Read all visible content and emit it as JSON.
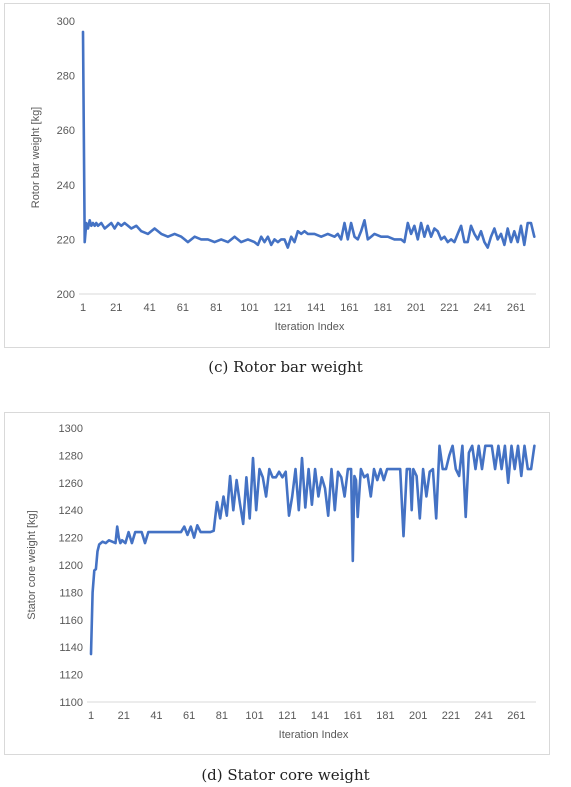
{
  "captions": {
    "c": "(c) Rotor bar weight",
    "d": "(d) Stator core weight"
  },
  "chart_data": [
    {
      "id": "rotor",
      "type": "line",
      "title": "",
      "xlabel": "Iteration Index",
      "ylabel": "Rotor bar weight [kg]",
      "ylim": [
        200,
        300
      ],
      "yticks": [
        200,
        220,
        240,
        260,
        280,
        300
      ],
      "xlim": [
        1,
        273
      ],
      "xticks": [
        1,
        21,
        41,
        61,
        81,
        101,
        121,
        141,
        161,
        181,
        201,
        221,
        241,
        261
      ],
      "grid": false,
      "line_color": "#4472c4",
      "series": [
        {
          "x": [
            1,
            2,
            3,
            4,
            5,
            6,
            7,
            8,
            9,
            10,
            12,
            14,
            16,
            18,
            20,
            22,
            24,
            26,
            28,
            30,
            33,
            36,
            40,
            44,
            48,
            52,
            56,
            60,
            62,
            64,
            68,
            72,
            76,
            80,
            84,
            88,
            92,
            96,
            100,
            104,
            106,
            108,
            110,
            112,
            114,
            116,
            118,
            120,
            122,
            124,
            126,
            128,
            130,
            132,
            134,
            136,
            140,
            144,
            148,
            152,
            154,
            156,
            158,
            160,
            162,
            164,
            166,
            168,
            170,
            172,
            174,
            176,
            180,
            184,
            188,
            192,
            194,
            196,
            198,
            200,
            202,
            204,
            206,
            208,
            210,
            212,
            214,
            216,
            218,
            220,
            222,
            224,
            226,
            228,
            230,
            232,
            234,
            236,
            238,
            240,
            242,
            244,
            246,
            248,
            250,
            252,
            254,
            256,
            258,
            260,
            262,
            264,
            266,
            268,
            270,
            272
          ],
          "values": [
            296,
            219,
            226,
            224,
            227,
            225,
            226,
            225,
            226,
            225,
            226,
            224,
            225,
            226,
            224,
            226,
            225,
            226,
            225,
            224,
            225,
            223,
            222,
            224,
            222,
            221,
            222,
            221,
            220,
            219,
            221,
            220,
            220,
            219,
            220,
            219,
            221,
            219,
            220,
            219,
            218,
            221,
            219,
            221,
            218,
            220,
            219,
            220,
            220,
            217,
            221,
            219,
            223,
            222,
            223,
            222,
            222,
            221,
            222,
            221,
            222,
            220,
            226,
            220,
            226,
            221,
            220,
            223,
            227,
            220,
            221,
            222,
            221,
            221,
            220,
            220,
            219,
            226,
            222,
            225,
            220,
            226,
            221,
            225,
            221,
            224,
            223,
            220,
            221,
            219,
            220,
            219,
            222,
            225,
            219,
            219,
            225,
            222,
            220,
            223,
            219,
            217,
            221,
            224,
            220,
            222,
            218,
            224,
            219,
            223,
            219,
            225,
            218,
            226,
            226,
            221
          ]
        }
      ]
    },
    {
      "id": "stator",
      "type": "line",
      "title": "",
      "xlabel": "Iteration Index",
      "ylabel": "Stator core weight [kg]",
      "ylim": [
        1100,
        1300
      ],
      "yticks": [
        1100,
        1120,
        1140,
        1160,
        1180,
        1200,
        1220,
        1240,
        1260,
        1280,
        1300
      ],
      "xlim": [
        1,
        273
      ],
      "xticks": [
        1,
        21,
        41,
        61,
        81,
        101,
        121,
        141,
        161,
        181,
        201,
        221,
        241,
        261
      ],
      "grid": false,
      "line_color": "#4472c4",
      "series": [
        {
          "x": [
            1,
            2,
            3,
            4,
            5,
            6,
            7,
            8,
            10,
            12,
            14,
            16,
            17,
            18,
            19,
            20,
            22,
            24,
            26,
            28,
            30,
            32,
            34,
            36,
            38,
            40,
            44,
            48,
            52,
            56,
            58,
            60,
            62,
            64,
            66,
            68,
            70,
            72,
            74,
            76,
            78,
            80,
            82,
            84,
            86,
            88,
            90,
            92,
            94,
            96,
            98,
            100,
            102,
            104,
            106,
            108,
            110,
            112,
            114,
            116,
            118,
            120,
            122,
            124,
            126,
            128,
            130,
            132,
            134,
            136,
            138,
            140,
            142,
            144,
            146,
            148,
            150,
            152,
            154,
            156,
            158,
            160,
            161,
            162,
            163,
            164,
            166,
            168,
            170,
            172,
            174,
            176,
            178,
            180,
            182,
            184,
            186,
            188,
            190,
            192,
            194,
            196,
            197,
            198,
            200,
            202,
            204,
            206,
            208,
            210,
            212,
            214,
            216,
            218,
            220,
            222,
            224,
            226,
            228,
            230,
            232,
            234,
            236,
            238,
            240,
            242,
            244,
            246,
            248,
            250,
            252,
            254,
            256,
            258,
            260,
            262,
            264,
            266,
            268,
            270,
            272
          ],
          "values": [
            1135,
            1180,
            1196,
            1197,
            1210,
            1215,
            1216,
            1217,
            1216,
            1218,
            1217,
            1216,
            1228,
            1220,
            1216,
            1218,
            1216,
            1224,
            1216,
            1224,
            1224,
            1224,
            1216,
            1224,
            1224,
            1224,
            1224,
            1224,
            1224,
            1224,
            1228,
            1222,
            1228,
            1220,
            1229,
            1224,
            1224,
            1224,
            1224,
            1225,
            1246,
            1234,
            1250,
            1236,
            1265,
            1240,
            1262,
            1245,
            1230,
            1264,
            1234,
            1278,
            1240,
            1270,
            1264,
            1250,
            1270,
            1264,
            1264,
            1268,
            1264,
            1268,
            1236,
            1250,
            1270,
            1240,
            1278,
            1242,
            1270,
            1244,
            1270,
            1250,
            1264,
            1256,
            1236,
            1270,
            1240,
            1268,
            1264,
            1250,
            1270,
            1270,
            1203,
            1265,
            1262,
            1235,
            1270,
            1264,
            1266,
            1250,
            1270,
            1262,
            1270,
            1262,
            1270,
            1270,
            1270,
            1270,
            1270,
            1221,
            1270,
            1270,
            1240,
            1270,
            1265,
            1234,
            1270,
            1250,
            1268,
            1270,
            1234,
            1287,
            1270,
            1270,
            1280,
            1287,
            1270,
            1265,
            1287,
            1235,
            1282,
            1287,
            1270,
            1287,
            1270,
            1287,
            1287,
            1287,
            1270,
            1287,
            1270,
            1287,
            1260,
            1287,
            1270,
            1287,
            1265,
            1287,
            1270,
            1270,
            1287
          ]
        }
      ]
    }
  ]
}
